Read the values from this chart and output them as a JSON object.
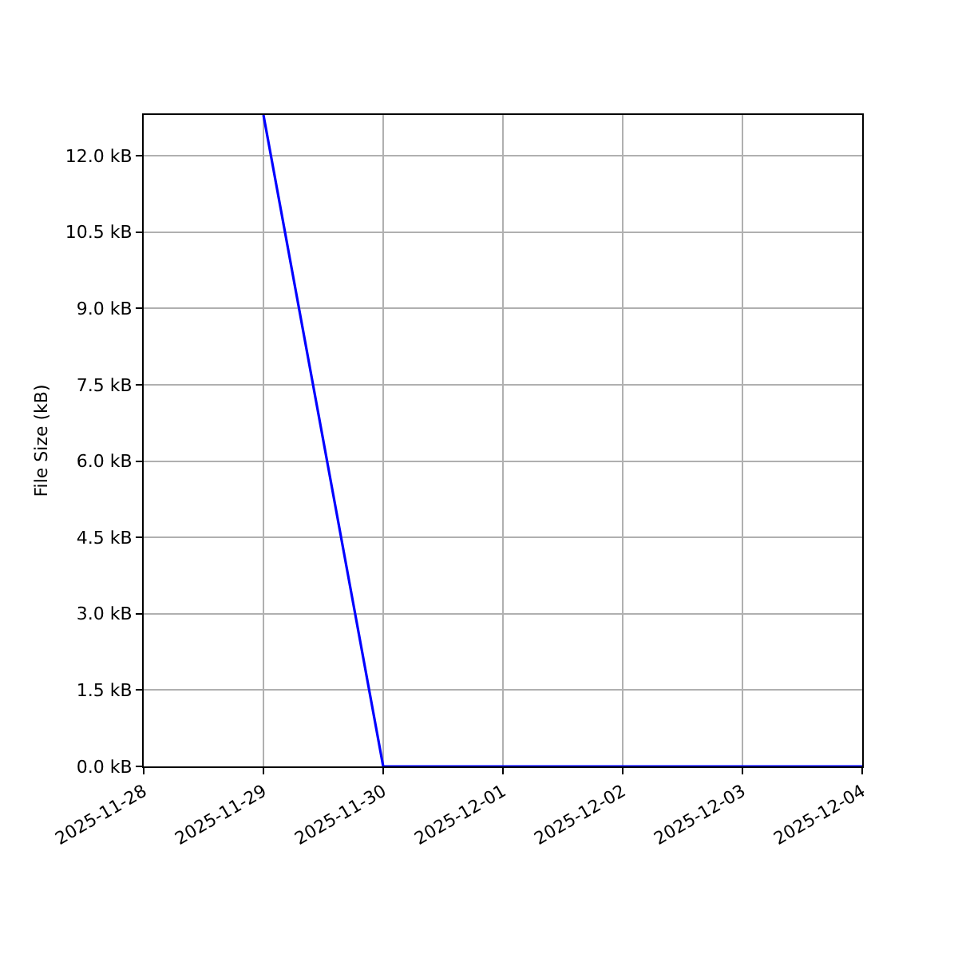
{
  "chart_data": {
    "type": "line",
    "ylabel": "File Size (kB)",
    "x": [
      "2025-11-29",
      "2025-11-30",
      "2025-12-01",
      "2025-12-02",
      "2025-12-03",
      "2025-12-04"
    ],
    "series": [
      {
        "color": "#0000ff",
        "values": [
          12.8,
          0,
          0,
          0,
          0,
          0
        ]
      }
    ],
    "xlim": [
      "2025-11-28",
      "2025-12-04"
    ],
    "xticks": [
      "2025-11-28",
      "2025-11-29",
      "2025-11-30",
      "2025-12-01",
      "2025-12-02",
      "2025-12-03",
      "2025-12-04"
    ],
    "ylim": [
      0,
      12.8
    ],
    "yticks": [
      {
        "value": 0,
        "label": "0.0 kB"
      },
      {
        "value": 1.5,
        "label": "1.5 kB"
      },
      {
        "value": 3,
        "label": "3.0 kB"
      },
      {
        "value": 4.5,
        "label": "4.5 kB"
      },
      {
        "value": 6,
        "label": "6.0 kB"
      },
      {
        "value": 7.5,
        "label": "7.5 kB"
      },
      {
        "value": 9,
        "label": "9.0 kB"
      },
      {
        "value": 10.5,
        "label": "10.5 kB"
      },
      {
        "value": 12,
        "label": "12.0 kB"
      }
    ],
    "grid": true,
    "line_style": "solid"
  }
}
